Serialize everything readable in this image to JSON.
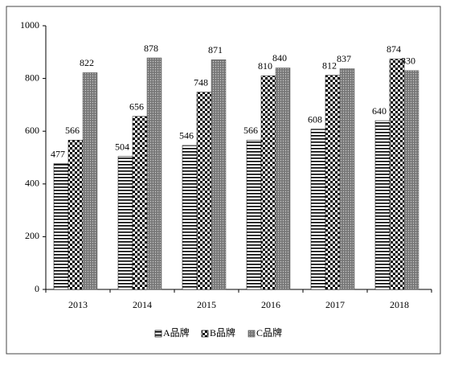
{
  "chart_data": {
    "type": "bar",
    "categories": [
      "2013",
      "2014",
      "2015",
      "2016",
      "2017",
      "2018"
    ],
    "series": [
      {
        "name": "A品牌",
        "color": "#000000",
        "pattern": "horizontal-lines",
        "values": [
          477,
          504,
          546,
          566,
          608,
          640
        ]
      },
      {
        "name": "B品牌",
        "color": "#000000",
        "pattern": "checker",
        "values": [
          566,
          656,
          748,
          810,
          812,
          874
        ]
      },
      {
        "name": "C品牌",
        "color": "#555555",
        "pattern": "dots",
        "values": [
          822,
          878,
          871,
          840,
          837,
          830
        ]
      }
    ],
    "ylim": [
      0,
      1000
    ],
    "yticks": [
      0,
      200,
      400,
      600,
      800,
      1000
    ],
    "grid": false,
    "legend": "bottom"
  }
}
